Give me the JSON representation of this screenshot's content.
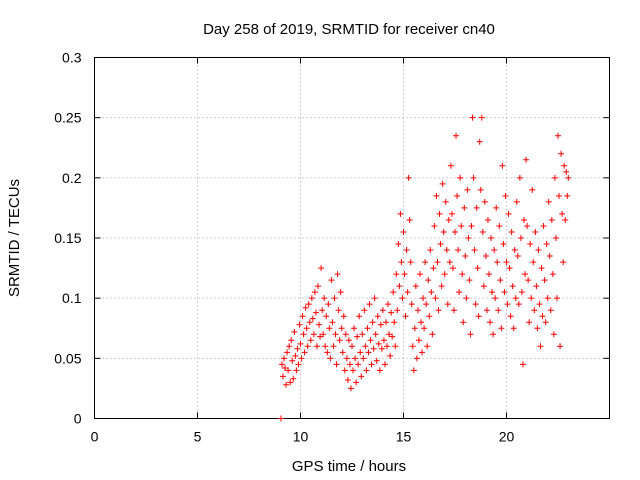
{
  "chart_data": {
    "type": "scatter",
    "title": "Day 258 of 2019, SRMTID for receiver cn40",
    "xlabel": "GPS time / hours",
    "ylabel": "SRMTID / TECUs",
    "xlim": [
      0,
      25
    ],
    "ylim": [
      0,
      0.3
    ],
    "xticks": [
      0,
      5,
      10,
      15,
      20
    ],
    "xtick_labels": [
      "0",
      "5",
      "10",
      "15",
      "20"
    ],
    "yticks": [
      0,
      0.05,
      0.1,
      0.15,
      0.2,
      0.25,
      0.3
    ],
    "ytick_labels": [
      "0",
      "0.05",
      "0.1",
      "0.15",
      "0.2",
      "0.25",
      "0.3"
    ],
    "grid": true,
    "marker": "plus",
    "color": "#ff0000",
    "series": [
      {
        "name": "SRMTID",
        "points": [
          [
            9.05,
            0.0
          ],
          [
            9.1,
            0.045
          ],
          [
            9.15,
            0.035
          ],
          [
            9.2,
            0.05
          ],
          [
            9.25,
            0.042
          ],
          [
            9.3,
            0.028
          ],
          [
            9.35,
            0.055
          ],
          [
            9.4,
            0.04
          ],
          [
            9.45,
            0.06
          ],
          [
            9.5,
            0.03
          ],
          [
            9.55,
            0.065
          ],
          [
            9.6,
            0.048
          ],
          [
            9.65,
            0.033
          ],
          [
            9.7,
            0.072
          ],
          [
            9.75,
            0.052
          ],
          [
            9.8,
            0.04
          ],
          [
            9.85,
            0.058
          ],
          [
            9.9,
            0.045
          ],
          [
            9.95,
            0.078
          ],
          [
            10.0,
            0.062
          ],
          [
            10.05,
            0.05
          ],
          [
            10.1,
            0.085
          ],
          [
            10.15,
            0.07
          ],
          [
            10.2,
            0.055
          ],
          [
            10.25,
            0.092
          ],
          [
            10.3,
            0.075
          ],
          [
            10.35,
            0.06
          ],
          [
            10.4,
            0.095
          ],
          [
            10.45,
            0.08
          ],
          [
            10.5,
            0.065
          ],
          [
            10.55,
            0.1
          ],
          [
            10.6,
            0.083
          ],
          [
            10.65,
            0.07
          ],
          [
            10.7,
            0.105
          ],
          [
            10.75,
            0.088
          ],
          [
            10.8,
            0.06
          ],
          [
            10.85,
            0.11
          ],
          [
            10.9,
            0.078
          ],
          [
            10.95,
            0.068
          ],
          [
            11.0,
            0.125
          ],
          [
            11.05,
            0.09
          ],
          [
            11.1,
            0.07
          ],
          [
            11.15,
            0.1
          ],
          [
            11.2,
            0.06
          ],
          [
            11.25,
            0.085
          ],
          [
            11.3,
            0.055
          ],
          [
            11.35,
            0.095
          ],
          [
            11.4,
            0.075
          ],
          [
            11.45,
            0.05
          ],
          [
            11.5,
            0.115
          ],
          [
            11.55,
            0.08
          ],
          [
            11.6,
            0.06
          ],
          [
            11.65,
            0.1
          ],
          [
            11.7,
            0.07
          ],
          [
            11.75,
            0.045
          ],
          [
            11.8,
            0.12
          ],
          [
            11.85,
            0.09
          ],
          [
            11.9,
            0.065
          ],
          [
            11.95,
            0.105
          ],
          [
            12.0,
            0.075
          ],
          [
            12.05,
            0.055
          ],
          [
            12.1,
            0.085
          ],
          [
            12.15,
            0.04
          ],
          [
            12.2,
            0.07
          ],
          [
            12.25,
            0.05
          ],
          [
            12.3,
            0.032
          ],
          [
            12.35,
            0.065
          ],
          [
            12.4,
            0.045
          ],
          [
            12.45,
            0.025
          ],
          [
            12.5,
            0.06
          ],
          [
            12.55,
            0.04
          ],
          [
            12.6,
            0.075
          ],
          [
            12.65,
            0.05
          ],
          [
            12.7,
            0.03
          ],
          [
            12.75,
            0.068
          ],
          [
            12.8,
            0.045
          ],
          [
            12.85,
            0.085
          ],
          [
            12.9,
            0.055
          ],
          [
            12.95,
            0.035
          ],
          [
            13.0,
            0.07
          ],
          [
            13.05,
            0.05
          ],
          [
            13.1,
            0.09
          ],
          [
            13.15,
            0.06
          ],
          [
            13.2,
            0.04
          ],
          [
            13.25,
            0.075
          ],
          [
            13.3,
            0.055
          ],
          [
            13.35,
            0.095
          ],
          [
            13.4,
            0.065
          ],
          [
            13.45,
            0.045
          ],
          [
            13.5,
            0.08
          ],
          [
            13.55,
            0.058
          ],
          [
            13.6,
            0.1
          ],
          [
            13.65,
            0.07
          ],
          [
            13.7,
            0.048
          ],
          [
            13.75,
            0.085
          ],
          [
            13.8,
            0.062
          ],
          [
            13.85,
            0.04
          ],
          [
            13.9,
            0.078
          ],
          [
            13.95,
            0.058
          ],
          [
            14.0,
            0.09
          ],
          [
            14.05,
            0.065
          ],
          [
            14.1,
            0.045
          ],
          [
            14.15,
            0.08
          ],
          [
            14.2,
            0.06
          ],
          [
            14.25,
            0.095
          ],
          [
            14.3,
            0.07
          ],
          [
            14.35,
            0.052
          ],
          [
            14.4,
            0.088
          ],
          [
            14.45,
            0.068
          ],
          [
            14.5,
            0.105
          ],
          [
            14.55,
            0.08
          ],
          [
            14.6,
            0.06
          ],
          [
            14.65,
            0.12
          ],
          [
            14.7,
            0.09
          ],
          [
            14.75,
            0.145
          ],
          [
            14.8,
            0.11
          ],
          [
            14.85,
            0.17
          ],
          [
            14.9,
            0.13
          ],
          [
            14.95,
            0.1
          ],
          [
            15.0,
            0.155
          ],
          [
            15.05,
            0.12
          ],
          [
            15.1,
            0.085
          ],
          [
            15.15,
            0.14
          ],
          [
            15.2,
            0.105
          ],
          [
            15.25,
            0.2
          ],
          [
            15.3,
            0.165
          ],
          [
            15.35,
            0.13
          ],
          [
            15.4,
            0.095
          ],
          [
            15.45,
            0.06
          ],
          [
            15.5,
            0.04
          ],
          [
            15.55,
            0.075
          ],
          [
            15.6,
            0.11
          ],
          [
            15.65,
            0.05
          ],
          [
            15.7,
            0.09
          ],
          [
            15.75,
            0.065
          ],
          [
            15.8,
            0.12
          ],
          [
            15.85,
            0.08
          ],
          [
            15.9,
            0.055
          ],
          [
            15.95,
            0.1
          ],
          [
            16.0,
            0.075
          ],
          [
            16.05,
            0.13
          ],
          [
            16.1,
            0.095
          ],
          [
            16.15,
            0.06
          ],
          [
            16.2,
            0.115
          ],
          [
            16.25,
            0.085
          ],
          [
            16.3,
            0.14
          ],
          [
            16.35,
            0.105
          ],
          [
            16.4,
            0.07
          ],
          [
            16.45,
            0.125
          ],
          [
            16.5,
            0.16
          ],
          [
            16.55,
            0.1
          ],
          [
            16.6,
            0.185
          ],
          [
            16.65,
            0.13
          ],
          [
            16.7,
            0.09
          ],
          [
            16.75,
            0.17
          ],
          [
            16.8,
            0.145
          ],
          [
            16.85,
            0.11
          ],
          [
            16.9,
            0.195
          ],
          [
            16.95,
            0.155
          ],
          [
            17.0,
            0.12
          ],
          [
            17.05,
            0.18
          ],
          [
            17.1,
            0.14
          ],
          [
            17.15,
            0.095
          ],
          [
            17.2,
            0.165
          ],
          [
            17.25,
            0.13
          ],
          [
            17.3,
            0.21
          ],
          [
            17.35,
            0.17
          ],
          [
            17.4,
            0.125
          ],
          [
            17.45,
            0.09
          ],
          [
            17.5,
            0.155
          ],
          [
            17.55,
            0.235
          ],
          [
            17.6,
            0.185
          ],
          [
            17.65,
            0.14
          ],
          [
            17.7,
            0.105
          ],
          [
            17.75,
            0.2
          ],
          [
            17.8,
            0.16
          ],
          [
            17.85,
            0.12
          ],
          [
            17.9,
            0.08
          ],
          [
            17.95,
            0.175
          ],
          [
            18.0,
            0.135
          ],
          [
            18.05,
            0.1
          ],
          [
            18.1,
            0.19
          ],
          [
            18.15,
            0.15
          ],
          [
            18.2,
            0.115
          ],
          [
            18.25,
            0.07
          ],
          [
            18.3,
            0.16
          ],
          [
            18.35,
            0.25
          ],
          [
            18.4,
            0.2
          ],
          [
            18.45,
            0.14
          ],
          [
            18.5,
            0.095
          ],
          [
            18.55,
            0.175
          ],
          [
            18.6,
            0.125
          ],
          [
            18.65,
            0.085
          ],
          [
            18.7,
            0.23
          ],
          [
            18.75,
            0.19
          ],
          [
            18.8,
            0.25
          ],
          [
            18.85,
            0.155
          ],
          [
            18.9,
            0.11
          ],
          [
            18.95,
            0.18
          ],
          [
            19.0,
            0.135
          ],
          [
            19.05,
            0.09
          ],
          [
            19.1,
            0.165
          ],
          [
            19.15,
            0.12
          ],
          [
            19.2,
            0.08
          ],
          [
            19.25,
            0.15
          ],
          [
            19.3,
            0.105
          ],
          [
            19.35,
            0.07
          ],
          [
            19.4,
            0.14
          ],
          [
            19.45,
            0.1
          ],
          [
            19.5,
            0.175
          ],
          [
            19.55,
            0.13
          ],
          [
            19.6,
            0.09
          ],
          [
            19.65,
            0.16
          ],
          [
            19.7,
            0.115
          ],
          [
            19.75,
            0.075
          ],
          [
            19.8,
            0.21
          ],
          [
            19.85,
            0.145
          ],
          [
            19.9,
            0.105
          ],
          [
            19.95,
            0.185
          ],
          [
            20.0,
            0.13
          ],
          [
            20.05,
            0.095
          ],
          [
            20.1,
            0.17
          ],
          [
            20.15,
            0.125
          ],
          [
            20.2,
            0.085
          ],
          [
            20.25,
            0.155
          ],
          [
            20.3,
            0.11
          ],
          [
            20.35,
            0.075
          ],
          [
            20.4,
            0.14
          ],
          [
            20.45,
            0.1
          ],
          [
            20.5,
            0.18
          ],
          [
            20.55,
            0.135
          ],
          [
            20.6,
            0.095
          ],
          [
            20.65,
            0.2
          ],
          [
            20.7,
            0.15
          ],
          [
            20.75,
            0.105
          ],
          [
            20.8,
            0.045
          ],
          [
            20.85,
            0.165
          ],
          [
            20.9,
            0.12
          ],
          [
            20.95,
            0.215
          ],
          [
            21.0,
            0.16
          ],
          [
            21.05,
            0.115
          ],
          [
            21.1,
            0.08
          ],
          [
            21.15,
            0.145
          ],
          [
            21.2,
            0.1
          ],
          [
            21.25,
            0.19
          ],
          [
            21.3,
            0.13
          ],
          [
            21.35,
            0.09
          ],
          [
            21.4,
            0.155
          ],
          [
            21.45,
            0.11
          ],
          [
            21.5,
            0.075
          ],
          [
            21.55,
            0.14
          ],
          [
            21.6,
            0.095
          ],
          [
            21.65,
            0.06
          ],
          [
            21.7,
            0.125
          ],
          [
            21.75,
            0.085
          ],
          [
            21.8,
            0.16
          ],
          [
            21.85,
            0.115
          ],
          [
            21.9,
            0.08
          ],
          [
            21.95,
            0.145
          ],
          [
            22.0,
            0.1
          ],
          [
            22.05,
            0.18
          ],
          [
            22.1,
            0.135
          ],
          [
            22.15,
            0.09
          ],
          [
            22.2,
            0.165
          ],
          [
            22.25,
            0.12
          ],
          [
            22.3,
            0.07
          ],
          [
            22.35,
            0.2
          ],
          [
            22.4,
            0.15
          ],
          [
            22.45,
            0.1
          ],
          [
            22.5,
            0.235
          ],
          [
            22.55,
            0.185
          ],
          [
            22.6,
            0.06
          ],
          [
            22.65,
            0.22
          ],
          [
            22.7,
            0.17
          ],
          [
            22.75,
            0.13
          ],
          [
            22.8,
            0.21
          ],
          [
            22.85,
            0.165
          ],
          [
            22.9,
            0.205
          ],
          [
            22.95,
            0.185
          ],
          [
            23.0,
            0.2
          ]
        ]
      }
    ]
  }
}
